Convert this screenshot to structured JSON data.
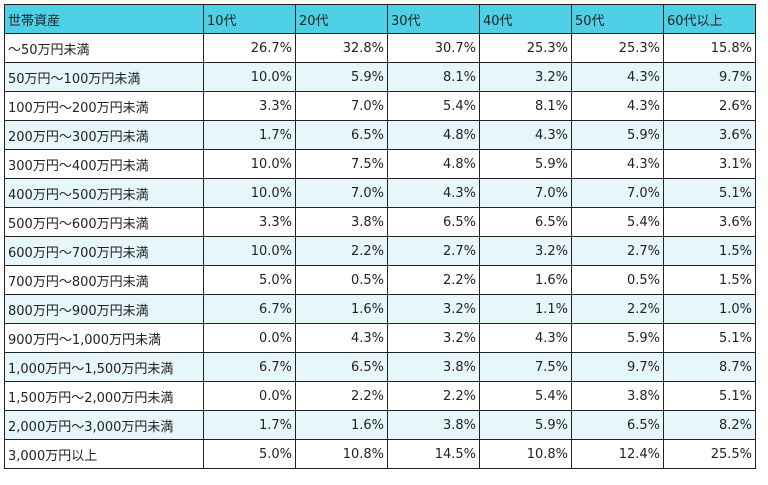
{
  "table": {
    "headers": [
      "世帯資産",
      "10代",
      "20代",
      "30代",
      "40代",
      "50代",
      "60代以上"
    ],
    "rows": [
      [
        "〜50万円未満",
        "26.7%",
        "32.8%",
        "30.7%",
        "25.3%",
        "25.3%",
        "15.8%"
      ],
      [
        "50万円〜100万円未満",
        "10.0%",
        "5.9%",
        "8.1%",
        "3.2%",
        "4.3%",
        "9.7%"
      ],
      [
        "100万円〜200万円未満",
        "3.3%",
        "7.0%",
        "5.4%",
        "8.1%",
        "4.3%",
        "2.6%"
      ],
      [
        "200万円〜300万円未満",
        "1.7%",
        "6.5%",
        "4.8%",
        "4.3%",
        "5.9%",
        "3.6%"
      ],
      [
        "300万円〜400万円未満",
        "10.0%",
        "7.5%",
        "4.8%",
        "5.9%",
        "4.3%",
        "3.1%"
      ],
      [
        "400万円〜500万円未満",
        "10.0%",
        "7.0%",
        "4.3%",
        "7.0%",
        "7.0%",
        "5.1%"
      ],
      [
        "500万円〜600万円未満",
        "3.3%",
        "3.8%",
        "6.5%",
        "6.5%",
        "5.4%",
        "3.6%"
      ],
      [
        "600万円〜700万円未満",
        "10.0%",
        "2.2%",
        "2.7%",
        "3.2%",
        "2.7%",
        "1.5%"
      ],
      [
        "700万円〜800万円未満",
        "5.0%",
        "0.5%",
        "2.2%",
        "1.6%",
        "0.5%",
        "1.5%"
      ],
      [
        "800万円〜900万円未満",
        "6.7%",
        "1.6%",
        "3.2%",
        "1.1%",
        "2.2%",
        "1.0%"
      ],
      [
        "900万円〜1,000万円未満",
        "0.0%",
        "4.3%",
        "3.2%",
        "4.3%",
        "5.9%",
        "5.1%"
      ],
      [
        "1,000万円〜1,500万円未満",
        "6.7%",
        "6.5%",
        "3.8%",
        "7.5%",
        "9.7%",
        "8.7%"
      ],
      [
        "1,500万円〜2,000万円未満",
        "0.0%",
        "2.2%",
        "2.2%",
        "5.4%",
        "3.8%",
        "5.1%"
      ],
      [
        "2,000万円〜3,000万円未満",
        "1.7%",
        "1.6%",
        "3.8%",
        "5.9%",
        "6.5%",
        "8.2%"
      ],
      [
        "3,000万円以上",
        "5.0%",
        "10.8%",
        "14.5%",
        "10.8%",
        "12.4%",
        "25.5%"
      ]
    ]
  },
  "colors": {
    "header_bg": "#4dd0e6",
    "alt_row_bg": "#e6f6fa",
    "border": "#222222"
  }
}
